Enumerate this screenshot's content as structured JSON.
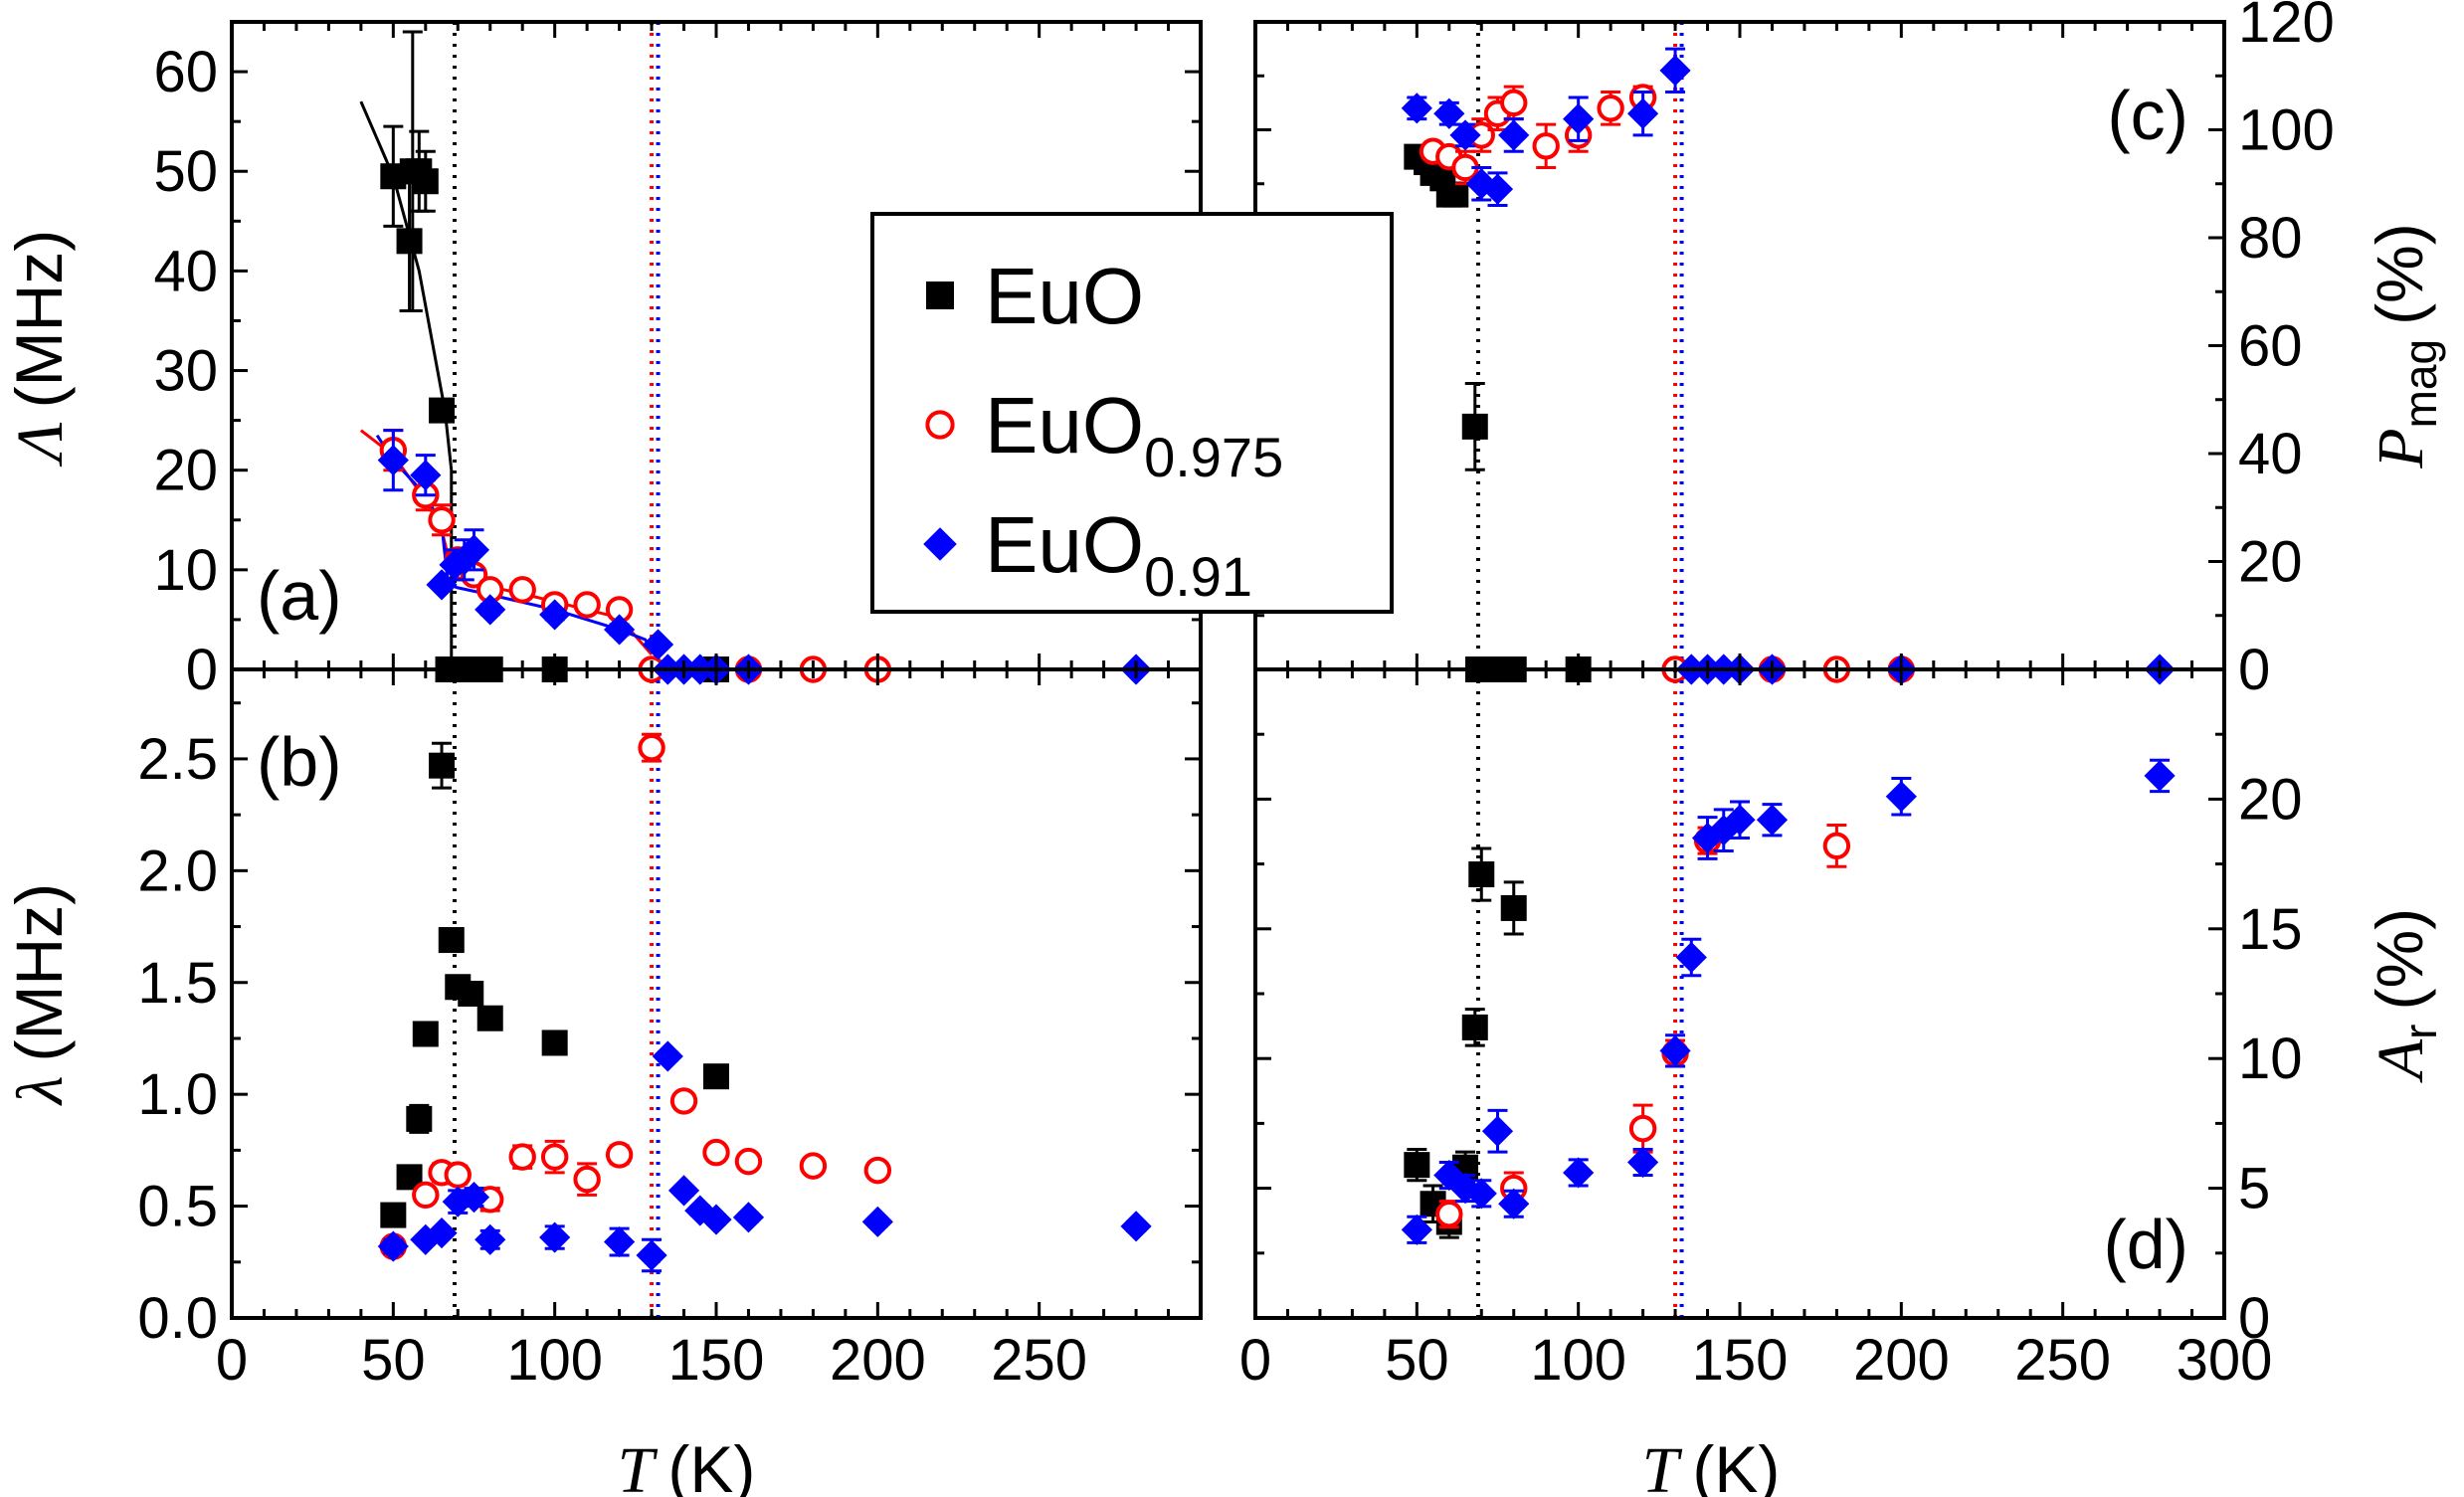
{
  "chart_data": {
    "type": "scatter",
    "x_label": "T (K)",
    "x_label_symbol": "T",
    "x_label_unit": "(K)",
    "colors": {
      "EuO": "#000000",
      "EuO0.975": "#ff0000",
      "EuO0.91": "#0000ff"
    },
    "legend": {
      "position": "center",
      "entries": [
        {
          "series": "EuO",
          "label": "EuO",
          "base": "EuO",
          "subscript": "",
          "marker": "filled-square",
          "color": "#000000"
        },
        {
          "series": "EuO0.975",
          "label": "EuO0.975",
          "base": "EuO",
          "subscript": "0.975",
          "marker": "open-circle",
          "color": "#ff0000"
        },
        {
          "series": "EuO0.91",
          "label": "EuO0.91",
          "base": "EuO",
          "subscript": "0.91",
          "marker": "filled-diamond",
          "color": "#0000ff"
        }
      ]
    },
    "transition_lines": [
      {
        "T": 69,
        "color": "#000000"
      },
      {
        "T": 130,
        "color": "#ff0000"
      },
      {
        "T": 132,
        "color": "#0000ff"
      }
    ],
    "panels": [
      {
        "id": "a",
        "label": "(a)",
        "quadrant": "top-left",
        "ylabel_symbol": "Λ",
        "ylabel_unit": "(MHz)",
        "y_axis_side": "left",
        "xlim": [
          0,
          300
        ],
        "ylim": [
          0,
          65
        ],
        "yticks": [
          0,
          10,
          20,
          30,
          40,
          50,
          60
        ],
        "ytick_labels": [
          "0",
          "10",
          "20",
          "30",
          "40",
          "50",
          "60"
        ],
        "series": [
          {
            "name": "EuO",
            "x": [
              50,
              55,
              56,
              58,
              60,
              65,
              67,
              70,
              72,
              75,
              80,
              100,
              150
            ],
            "y": [
              49.5,
              43,
              50,
              50,
              49,
              26,
              0,
              0,
              0,
              0,
              0,
              0,
              0
            ],
            "err": [
              5,
              7,
              14,
              4,
              3,
              0,
              0,
              0,
              0,
              0,
              0,
              0,
              0
            ]
          },
          {
            "name": "EuO0.975",
            "x": [
              50,
              60,
              65,
              70,
              75,
              80,
              90,
              100,
              110,
              120,
              130,
              160,
              180,
              200
            ],
            "y": [
              22,
              17.5,
              15,
              11,
              9.5,
              8,
              8,
              6.5,
              6.5,
              6,
              0,
              0,
              0,
              0
            ],
            "err": [
              2,
              1.5,
              1.5,
              1,
              0,
              0,
              0,
              0,
              0,
              0,
              0,
              0,
              0,
              0
            ]
          },
          {
            "name": "EuO0.91",
            "x": [
              50,
              60,
              65,
              69,
              72,
              75,
              80,
              100,
              120,
              132,
              135,
              140,
              145,
              150,
              160,
              280
            ],
            "y": [
              21,
              19.5,
              8.5,
              10.5,
              11,
              12,
              6,
              5.5,
              4,
              2.5,
              0,
              0,
              0,
              0,
              0,
              0
            ],
            "err": [
              3,
              2,
              0,
              1.5,
              2,
              2,
              0.5,
              0.5,
              0.5,
              0,
              0,
              0,
              0,
              0,
              0,
              0
            ]
          }
        ],
        "fit_lines": [
          {
            "color": "#000000",
            "x": [
              40,
              50,
              58,
              62,
              66,
              68,
              68
            ],
            "y": [
              57,
              49.5,
              40,
              33,
              26,
              20,
              0
            ]
          },
          {
            "color": "#ff0000",
            "x": [
              40,
              50,
              60,
              65,
              68,
              70,
              80,
              90,
              100,
              110,
              120,
              130
            ],
            "y": [
              24,
              21.5,
              17,
              14,
              10,
              9.2,
              8.3,
              7.6,
              6.8,
              6.0,
              5.2,
              1.5
            ]
          },
          {
            "color": "#0000ff",
            "x": [
              45,
              50,
              60,
              65,
              67,
              70,
              80,
              100,
              110,
              120,
              128,
              132
            ],
            "y": [
              23.5,
              21,
              17.5,
              14.5,
              8.5,
              8.2,
              7.5,
              6.0,
              5.0,
              4.0,
              3.0,
              1.0
            ]
          }
        ]
      },
      {
        "id": "b",
        "label": "(b)",
        "quadrant": "bottom-left",
        "ylabel_symbol": "λ",
        "ylabel_unit": "(MHz)",
        "y_axis_side": "left",
        "xlim": [
          0,
          300
        ],
        "ylim": [
          0,
          2.9
        ],
        "yticks": [
          0,
          0.5,
          1.0,
          1.5,
          2.0,
          2.5
        ],
        "ytick_labels": [
          "0.0",
          "0.5",
          "1.0",
          "1.5",
          "2.0",
          "2.5"
        ],
        "xticks": [
          0,
          50,
          100,
          150,
          200,
          250
        ],
        "xtick_labels": [
          "0",
          "50",
          "100",
          "150",
          "200",
          "250"
        ],
        "series": [
          {
            "name": "EuO",
            "x": [
              50,
              55,
              58,
              60,
              65,
              68,
              70,
              74,
              80,
              100,
              150
            ],
            "y": [
              0.46,
              0.63,
              0.89,
              1.27,
              2.47,
              1.69,
              1.48,
              1.45,
              1.34,
              1.23,
              1.08
            ],
            "err": [
              0.03,
              0.03,
              0.06,
              0.05,
              0.1,
              0.03,
              0.03,
              0.03,
              0.03,
              0.03,
              0.03
            ]
          },
          {
            "name": "EuO0.975",
            "x": [
              50,
              60,
              65,
              70,
              80,
              90,
              100,
              110,
              120,
              130,
              140,
              150,
              160,
              180,
              200
            ],
            "y": [
              0.32,
              0.55,
              0.65,
              0.64,
              0.53,
              0.72,
              0.72,
              0.62,
              0.73,
              2.55,
              0.97,
              0.74,
              0.7,
              0.68,
              0.66
            ],
            "err": [
              0.03,
              0.03,
              0.04,
              0.04,
              0.05,
              0.05,
              0.07,
              0.07,
              0.04,
              0.06,
              0.03,
              0.03,
              0.02,
              0.02,
              0.02
            ]
          },
          {
            "name": "EuO0.91",
            "x": [
              50,
              60,
              65,
              70,
              75,
              80,
              100,
              120,
              130,
              135,
              140,
              145,
              150,
              160,
              200,
              280
            ],
            "y": [
              0.32,
              0.35,
              0.38,
              0.52,
              0.54,
              0.35,
              0.36,
              0.34,
              0.28,
              1.17,
              0.57,
              0.48,
              0.44,
              0.45,
              0.43,
              0.41
            ],
            "err": [
              0.03,
              0.02,
              0.02,
              0.05,
              0.04,
              0.04,
              0.05,
              0.06,
              0.07,
              0.02,
              0.02,
              0.02,
              0.02,
              0.02,
              0.02,
              0.02
            ]
          }
        ]
      },
      {
        "id": "c",
        "label": "(c)",
        "quadrant": "top-right",
        "ylabel_symbol": "P",
        "ylabel_sub": "mag",
        "ylabel_unit": "(%)",
        "y_axis_side": "right",
        "xlim": [
          0,
          300
        ],
        "ylim": [
          0,
          120
        ],
        "yticks": [
          0,
          20,
          40,
          60,
          80,
          100,
          120
        ],
        "ytick_labels": [
          "0",
          "20",
          "40",
          "60",
          "80",
          "100",
          "120"
        ],
        "series": [
          {
            "name": "EuO",
            "x": [
              50,
              53,
              55,
              58,
              60,
              62,
              68,
              69,
              70,
              72,
              75,
              78,
              80,
              100
            ],
            "y": [
              95,
              94,
              92,
              91,
              88,
              88,
              45,
              0,
              0,
              0,
              0,
              0,
              0,
              0
            ],
            "err": [
              2,
              2,
              2,
              2,
              2,
              2,
              8,
              0,
              0,
              0,
              0,
              0,
              0,
              0
            ]
          },
          {
            "name": "EuO0.975",
            "x": [
              55,
              60,
              65,
              70,
              75,
              80,
              90,
              100,
              110,
              120,
              130,
              160,
              180,
              200
            ],
            "y": [
              96,
              95,
              93,
              99,
              103,
              105,
              97,
              99,
              104,
              106,
              0,
              0,
              0,
              0
            ],
            "err": [
              0,
              0,
              3,
              3,
              3,
              3,
              4,
              3,
              3,
              2,
              0,
              0,
              0,
              0
            ]
          },
          {
            "name": "EuO0.91",
            "x": [
              50,
              60,
              65,
              70,
              75,
              80,
              100,
              120,
              130,
              135,
              140,
              145,
              150,
              160,
              200,
              280
            ],
            "y": [
              104,
              103,
              99,
              90,
              89,
              99,
              102,
              103,
              111,
              0,
              0,
              0,
              0,
              0,
              0,
              0
            ],
            "err": [
              2,
              2,
              2,
              3,
              3,
              3,
              4,
              4,
              4,
              0,
              0,
              0,
              0,
              0,
              0,
              0
            ]
          }
        ]
      },
      {
        "id": "d",
        "label": "(d)",
        "quadrant": "bottom-right",
        "ylabel_symbol": "A",
        "ylabel_sub": "r",
        "ylabel_unit": "(%)",
        "y_axis_side": "right",
        "xlim": [
          0,
          300
        ],
        "ylim": [
          0,
          25
        ],
        "yticks": [
          0,
          5,
          10,
          15,
          20
        ],
        "ytick_labels": [
          "0",
          "5",
          "10",
          "15",
          "20"
        ],
        "xticks": [
          0,
          50,
          100,
          150,
          200,
          250,
          300
        ],
        "xtick_labels": [
          "0",
          "50",
          "100",
          "150",
          "200",
          "250",
          "300"
        ],
        "series": [
          {
            "name": "EuO",
            "x": [
              50,
              55,
              60,
              65,
              68,
              70,
              80
            ],
            "y": [
              5.9,
              4.4,
              3.7,
              5.8,
              11.2,
              17.1,
              15.8
            ],
            "err": [
              0.6,
              0.7,
              0.6,
              0.6,
              0.7,
              1.0,
              1.0
            ]
          },
          {
            "name": "EuO0.975",
            "x": [
              60,
              80,
              120,
              130,
              140,
              180
            ],
            "y": [
              4.0,
              5.0,
              7.3,
              10.2,
              18.4,
              18.2
            ],
            "err": [
              0.5,
              0.6,
              0.9,
              0.5,
              0.5,
              0.8
            ]
          },
          {
            "name": "EuO0.91",
            "x": [
              50,
              60,
              65,
              70,
              75,
              80,
              100,
              120,
              130,
              135,
              140,
              145,
              150,
              160,
              200,
              280
            ],
            "y": [
              3.4,
              5.5,
              5.0,
              4.8,
              7.2,
              4.4,
              5.6,
              6.0,
              10.3,
              13.9,
              18.5,
              18.8,
              19.2,
              19.2,
              20.1,
              20.9
            ],
            "err": [
              0.5,
              0.5,
              0.5,
              0.5,
              0.8,
              0.5,
              0.5,
              0.5,
              0.6,
              0.7,
              0.8,
              0.8,
              0.7,
              0.6,
              0.7,
              0.6
            ]
          }
        ]
      }
    ]
  }
}
